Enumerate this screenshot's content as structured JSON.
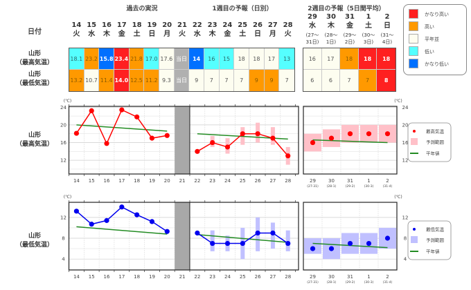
{
  "header": {
    "past_title": "過去の実況",
    "week1_title": "1週目の予報（日別）",
    "week2_title": "2週目の予報（5日間平均）",
    "date_label": "日付"
  },
  "days": [
    {
      "d": "14",
      "w": "火"
    },
    {
      "d": "15",
      "w": "水"
    },
    {
      "d": "16",
      "w": "木"
    },
    {
      "d": "17",
      "w": "金"
    },
    {
      "d": "18",
      "w": "土"
    },
    {
      "d": "19",
      "w": "日"
    },
    {
      "d": "20",
      "w": "月"
    },
    {
      "d": "21",
      "w": "火"
    },
    {
      "d": "22",
      "w": "水"
    },
    {
      "d": "23",
      "w": "木"
    },
    {
      "d": "24",
      "w": "金"
    },
    {
      "d": "25",
      "w": "土"
    },
    {
      "d": "26",
      "w": "日"
    },
    {
      "d": "27",
      "w": "月"
    },
    {
      "d": "28",
      "w": "火"
    }
  ],
  "week2_days": [
    {
      "d": "29",
      "w": "水",
      "r1": "(27〜",
      "r2": "31日)"
    },
    {
      "d": "30",
      "w": "木",
      "r1": "(28〜",
      "r2": "1日)"
    },
    {
      "d": "31",
      "w": "金",
      "r1": "(29〜",
      "r2": "2日)"
    },
    {
      "d": "1",
      "w": "土",
      "r1": "(30〜",
      "r2": "3日)"
    },
    {
      "d": "2",
      "w": "日",
      "r1": "(31〜",
      "r2": "4日)"
    }
  ],
  "rows": {
    "max_label1": "山形",
    "max_label2": "（最高気温）",
    "min_label1": "山形",
    "min_label2": "（最低気温）"
  },
  "colors": {
    "very_high": "#ff2020",
    "high": "#ff9900",
    "normal": "#fdfdf0",
    "low": "#55ffff",
    "very_low": "#0070ff",
    "today": "#b0b0b0"
  },
  "table_max": [
    {
      "v": "18.1",
      "c": "low"
    },
    {
      "v": "23.2",
      "c": "high"
    },
    {
      "v": "15.8",
      "c": "very_low"
    },
    {
      "v": "23.4",
      "c": "very_high"
    },
    {
      "v": "21.8",
      "c": "high"
    },
    {
      "v": "17.0",
      "c": "low"
    },
    {
      "v": "17.6",
      "c": "normal"
    },
    {
      "v": "当日",
      "c": "today"
    },
    {
      "v": "14",
      "c": "very_low"
    },
    {
      "v": "16",
      "c": "low"
    },
    {
      "v": "15",
      "c": "low"
    },
    {
      "v": "18",
      "c": "normal"
    },
    {
      "v": "18",
      "c": "normal"
    },
    {
      "v": "17",
      "c": "normal"
    },
    {
      "v": "13",
      "c": "low"
    }
  ],
  "table_min": [
    {
      "v": "13.2",
      "c": "high"
    },
    {
      "v": "10.7",
      "c": "normal"
    },
    {
      "v": "11.4",
      "c": "high"
    },
    {
      "v": "14.0",
      "c": "very_high"
    },
    {
      "v": "12.5",
      "c": "high"
    },
    {
      "v": "11.2",
      "c": "high"
    },
    {
      "v": "9.3",
      "c": "normal"
    },
    {
      "v": "当日",
      "c": "today"
    },
    {
      "v": "9",
      "c": "normal"
    },
    {
      "v": "7",
      "c": "normal"
    },
    {
      "v": "7",
      "c": "normal"
    },
    {
      "v": "7",
      "c": "normal"
    },
    {
      "v": "9",
      "c": "high"
    },
    {
      "v": "9",
      "c": "high"
    },
    {
      "v": "7",
      "c": "normal"
    }
  ],
  "table2_max": [
    {
      "v": "16",
      "c": "normal"
    },
    {
      "v": "17",
      "c": "normal"
    },
    {
      "v": "18",
      "c": "high"
    },
    {
      "v": "18",
      "c": "very_high"
    },
    {
      "v": "18",
      "c": "very_high"
    }
  ],
  "table2_min": [
    {
      "v": "6",
      "c": "normal"
    },
    {
      "v": "6",
      "c": "normal"
    },
    {
      "v": "7",
      "c": "normal"
    },
    {
      "v": "7",
      "c": "high"
    },
    {
      "v": "8",
      "c": "very_high"
    }
  ],
  "legend_table": [
    {
      "label": "かなり高い",
      "c": "very_high"
    },
    {
      "label": "高い",
      "c": "high"
    },
    {
      "label": "平年並",
      "c": "normal"
    },
    {
      "label": "低い",
      "c": "low"
    },
    {
      "label": "かなり低い",
      "c": "very_low"
    }
  ],
  "chart_data": [
    {
      "type": "line",
      "title": "山形（最高気温）",
      "ylabel": "(℃)",
      "ylim": [
        8.9,
        24.2
      ],
      "yticks": [
        12,
        16,
        20,
        24
      ],
      "grid": true,
      "x_daily": [
        "14",
        "15",
        "16",
        "17",
        "18",
        "19",
        "20",
        "21",
        "22",
        "23",
        "24",
        "25",
        "26",
        "27",
        "28"
      ],
      "x_week2": [
        "29",
        "30",
        "31",
        "1",
        "2"
      ],
      "x_week2_sub": [
        "(27-31)",
        "(28-1)",
        "(29-2)",
        "(30-3)",
        "(31-4)"
      ],
      "past": [
        18.1,
        23.2,
        15.8,
        23.4,
        21.8,
        17.0,
        17.6
      ],
      "forecast": [
        14,
        16,
        15,
        18,
        18,
        17,
        13
      ],
      "forecast_range": [
        [
          14,
          14
        ],
        [
          15,
          17.5
        ],
        [
          13.5,
          17
        ],
        [
          15.5,
          19.5
        ],
        [
          16,
          20.5
        ],
        [
          15.5,
          19.5
        ],
        [
          11,
          15
        ]
      ],
      "week2": [
        16,
        17,
        18,
        18,
        18
      ],
      "week2_range": [
        [
          14,
          18
        ],
        [
          15,
          19
        ],
        [
          16,
          20
        ],
        [
          16,
          20
        ],
        [
          16,
          20
        ]
      ],
      "normal_past": [
        20.0,
        18.6
      ],
      "normal_forecast": [
        18.0,
        16.8
      ],
      "normal_week2": [
        16.6,
        16.0
      ],
      "legend": {
        "point": "最高気温",
        "range": "予測範囲",
        "normal": "平年値"
      },
      "point_color": "#ff0000",
      "range_color": "#ffc0c8",
      "normal_color": "#228b22",
      "legend_position": "right"
    },
    {
      "type": "line",
      "title": "山形（最低気温）",
      "ylabel": "(℃)",
      "ylim": [
        1.9,
        14.9
      ],
      "yticks": [
        4,
        8,
        12
      ],
      "grid": true,
      "x_daily": [
        "14",
        "15",
        "16",
        "17",
        "18",
        "19",
        "20",
        "21",
        "22",
        "23",
        "24",
        "25",
        "26",
        "27",
        "28"
      ],
      "x_week2": [
        "29",
        "30",
        "31",
        "1",
        "2"
      ],
      "x_week2_sub": [
        "(27-31)",
        "(28-1)",
        "(29-2)",
        "(30-3)",
        "(31-4)"
      ],
      "past": [
        13.2,
        10.7,
        11.4,
        14.0,
        12.5,
        11.2,
        9.3
      ],
      "forecast": [
        9,
        7,
        7,
        7,
        9,
        9,
        7
      ],
      "forecast_range": [
        [
          9,
          9
        ],
        [
          5.5,
          9.5
        ],
        [
          5.5,
          8.5
        ],
        [
          4,
          10
        ],
        [
          5.5,
          12
        ],
        [
          6,
          11
        ],
        [
          5.5,
          9.5
        ]
      ],
      "week2": [
        6,
        6,
        7,
        7,
        8
      ],
      "week2_range": [
        [
          5,
          8
        ],
        [
          4,
          8
        ],
        [
          5,
          9
        ],
        [
          5,
          9
        ],
        [
          6,
          10
        ]
      ],
      "normal_past": [
        10.2,
        8.8
      ],
      "normal_forecast": [
        8.7,
        7.2
      ],
      "normal_week2": [
        7.0,
        6.2
      ],
      "legend": {
        "point": "最低気温",
        "range": "予測範囲",
        "normal": "平年値"
      },
      "point_color": "#0000ee",
      "range_color": "#c0c0ff",
      "normal_color": "#228b22",
      "legend_position": "right"
    }
  ]
}
